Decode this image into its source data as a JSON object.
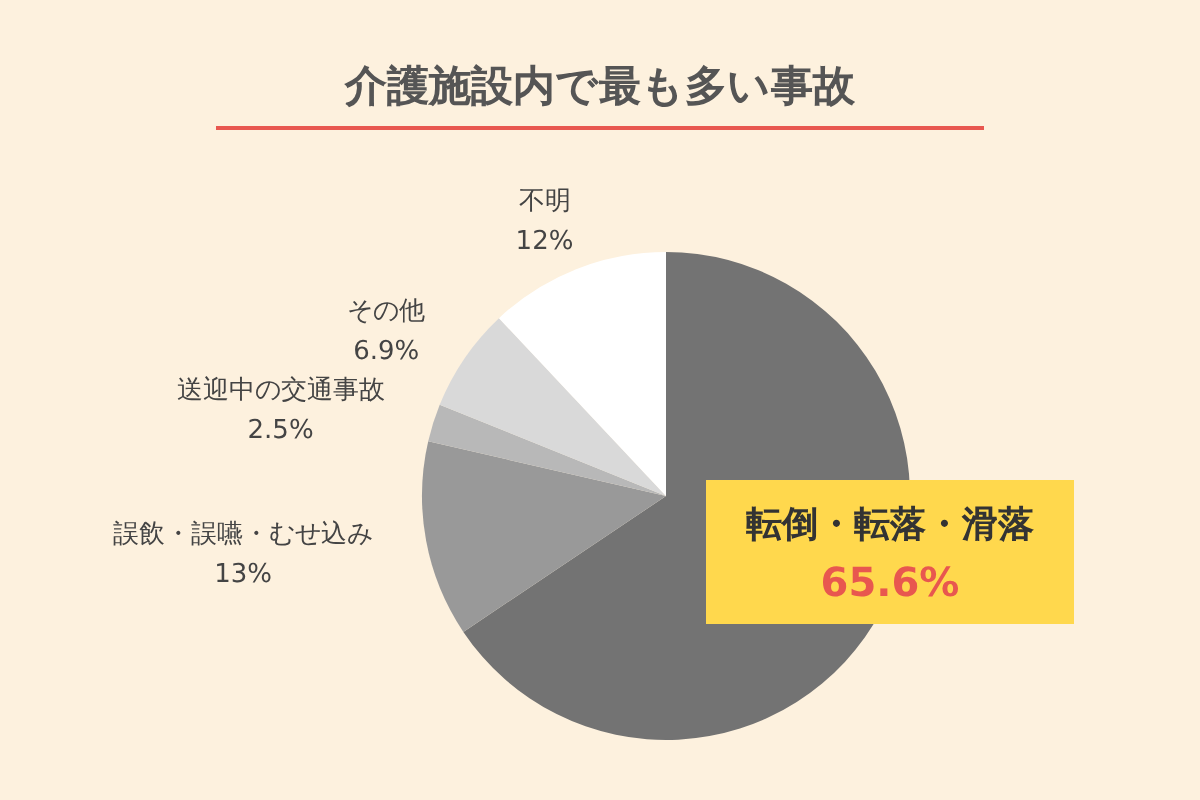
{
  "chart_data": {
    "type": "pie",
    "title": "介護施設内で最も多い事故",
    "categories": [
      "転倒・転落・滑落",
      "誤飲・誤嚥・むせ込み",
      "送迎中の交通事故",
      "その他",
      "不明"
    ],
    "values": [
      65.6,
      13,
      2.5,
      6.9,
      12
    ],
    "value_labels": [
      "65.6%",
      "13%",
      "2.5%",
      "6.9%",
      "12%"
    ],
    "colors": [
      "#737373",
      "#999999",
      "#b8b8b8",
      "#d9d9d9",
      "#ffffff"
    ]
  }
}
